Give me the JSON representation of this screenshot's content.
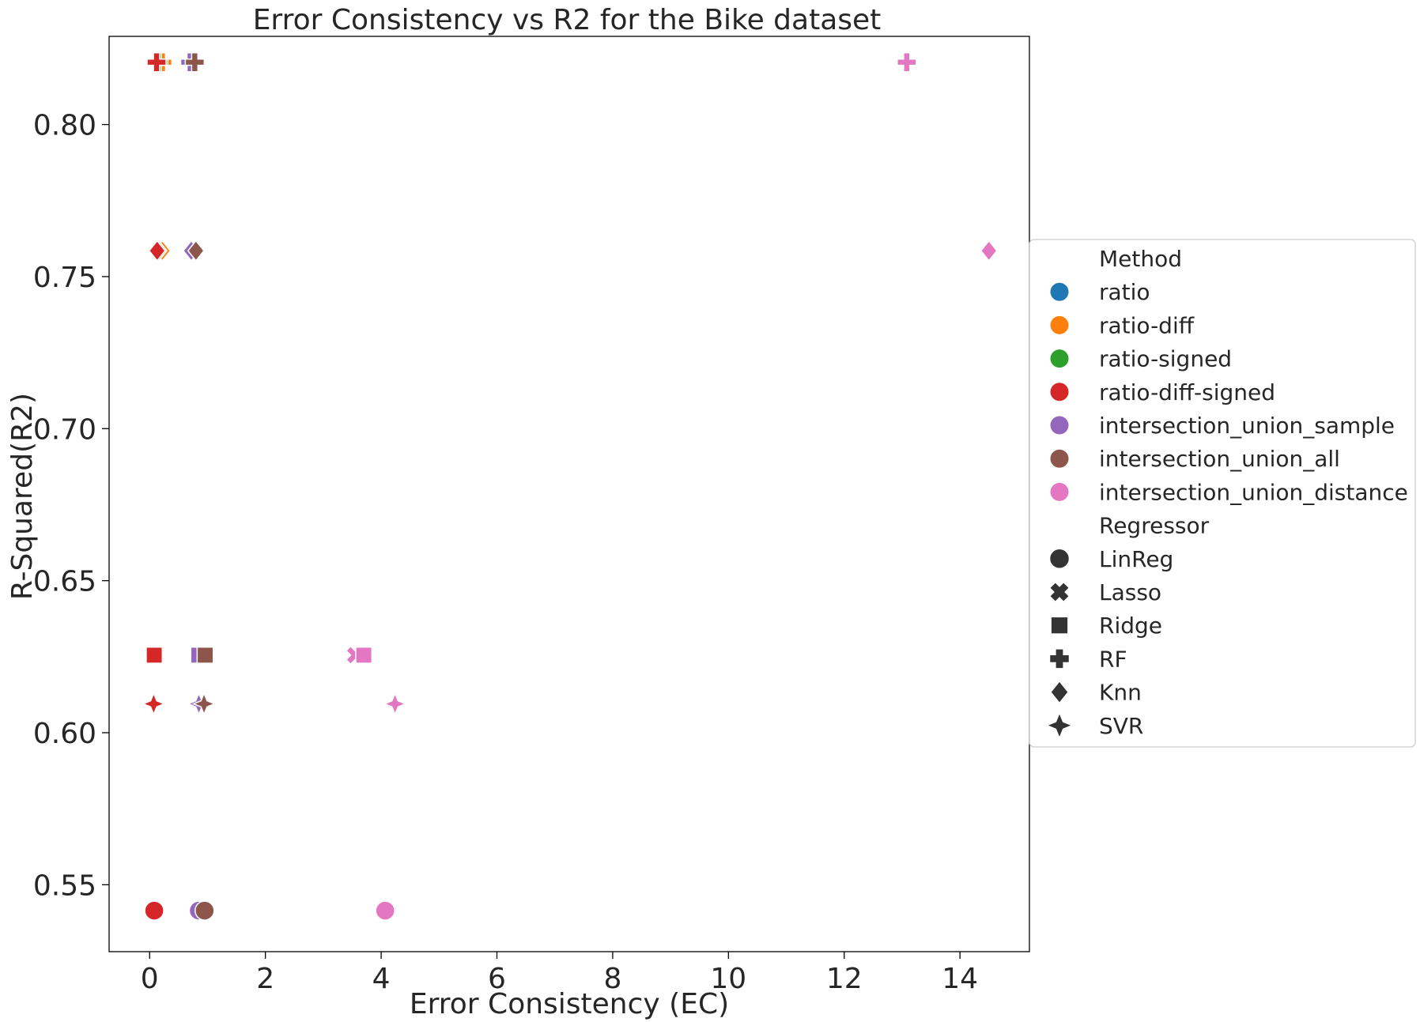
{
  "chart_data": {
    "type": "scatter",
    "title": "Error Consistency vs R2 for the Bike dataset",
    "xlabel": "Error Consistency (EC)",
    "ylabel": "R-Squared(R2)",
    "xlim": [
      -0.7,
      15.2
    ],
    "ylim": [
      0.528,
      0.829
    ],
    "xticks": [
      0,
      2,
      4,
      6,
      8,
      10,
      12,
      14
    ],
    "yticks": [
      0.55,
      0.6,
      0.65,
      0.7,
      0.75,
      0.8
    ],
    "xtick_labels": [
      "0",
      "2",
      "4",
      "6",
      "8",
      "10",
      "12",
      "14"
    ],
    "ytick_labels": [
      "0.55",
      "0.60",
      "0.65",
      "0.70",
      "0.75",
      "0.80"
    ],
    "grid": false,
    "legend_placement": "right",
    "legend": {
      "method_title": "Method",
      "methods": [
        {
          "name": "ratio",
          "color": "#1f77b4"
        },
        {
          "name": "ratio-diff",
          "color": "#ff7f0e"
        },
        {
          "name": "ratio-signed",
          "color": "#2ca02c"
        },
        {
          "name": "ratio-diff-signed",
          "color": "#d62728"
        },
        {
          "name": "intersection_union_sample",
          "color": "#9467bd"
        },
        {
          "name": "intersection_union_all",
          "color": "#8c564b"
        },
        {
          "name": "intersection_union_distance",
          "color": "#e377c2"
        }
      ],
      "regressor_title": "Regressor",
      "regressors": [
        {
          "name": "LinReg",
          "marker": "circle"
        },
        {
          "name": "Lasso",
          "marker": "x"
        },
        {
          "name": "Ridge",
          "marker": "square"
        },
        {
          "name": "RF",
          "marker": "plus"
        },
        {
          "name": "Knn",
          "marker": "diamond"
        },
        {
          "name": "SVR",
          "marker": "star4"
        }
      ]
    },
    "points": [
      {
        "method": "ratio",
        "regressor": "LinReg",
        "x": 0.07,
        "y": 0.5415
      },
      {
        "method": "ratio-diff",
        "regressor": "LinReg",
        "x": 0.08,
        "y": 0.5415
      },
      {
        "method": "ratio-signed",
        "regressor": "LinReg",
        "x": 0.07,
        "y": 0.5415
      },
      {
        "method": "ratio-diff-signed",
        "regressor": "LinReg",
        "x": 0.08,
        "y": 0.5415
      },
      {
        "method": "intersection_union_sample",
        "regressor": "LinReg",
        "x": 0.85,
        "y": 0.5415
      },
      {
        "method": "intersection_union_all",
        "regressor": "LinReg",
        "x": 0.95,
        "y": 0.5415
      },
      {
        "method": "intersection_union_distance",
        "regressor": "LinReg",
        "x": 4.07,
        "y": 0.5415
      },
      {
        "method": "ratio",
        "regressor": "Lasso",
        "x": 0.07,
        "y": 0.6255
      },
      {
        "method": "ratio-diff",
        "regressor": "Lasso",
        "x": 0.08,
        "y": 0.6255
      },
      {
        "method": "ratio-signed",
        "regressor": "Lasso",
        "x": 0.07,
        "y": 0.6255
      },
      {
        "method": "ratio-diff-signed",
        "regressor": "Lasso",
        "x": 0.08,
        "y": 0.6255
      },
      {
        "method": "intersection_union_sample",
        "regressor": "Lasso",
        "x": 0.85,
        "y": 0.6255
      },
      {
        "method": "intersection_union_all",
        "regressor": "Lasso",
        "x": 0.92,
        "y": 0.6255
      },
      {
        "method": "intersection_union_distance",
        "regressor": "Lasso",
        "x": 3.55,
        "y": 0.6255
      },
      {
        "method": "ratio",
        "regressor": "Ridge",
        "x": 0.07,
        "y": 0.6255
      },
      {
        "method": "ratio-diff",
        "regressor": "Ridge",
        "x": 0.08,
        "y": 0.6255
      },
      {
        "method": "ratio-signed",
        "regressor": "Ridge",
        "x": 0.07,
        "y": 0.6255
      },
      {
        "method": "ratio-diff-signed",
        "regressor": "Ridge",
        "x": 0.08,
        "y": 0.6255
      },
      {
        "method": "intersection_union_sample",
        "regressor": "Ridge",
        "x": 0.85,
        "y": 0.6255
      },
      {
        "method": "intersection_union_all",
        "regressor": "Ridge",
        "x": 0.96,
        "y": 0.6255
      },
      {
        "method": "intersection_union_distance",
        "regressor": "Ridge",
        "x": 3.7,
        "y": 0.6255
      },
      {
        "method": "ratio",
        "regressor": "RF",
        "x": 0.17,
        "y": 0.8205
      },
      {
        "method": "ratio-diff",
        "regressor": "RF",
        "x": 0.22,
        "y": 0.8205
      },
      {
        "method": "ratio-signed",
        "regressor": "RF",
        "x": 0.15,
        "y": 0.8205
      },
      {
        "method": "ratio-diff-signed",
        "regressor": "RF",
        "x": 0.12,
        "y": 0.8205
      },
      {
        "method": "intersection_union_sample",
        "regressor": "RF",
        "x": 0.7,
        "y": 0.8205
      },
      {
        "method": "intersection_union_all",
        "regressor": "RF",
        "x": 0.78,
        "y": 0.8205
      },
      {
        "method": "intersection_union_distance",
        "regressor": "RF",
        "x": 13.08,
        "y": 0.8205
      },
      {
        "method": "ratio",
        "regressor": "Knn",
        "x": 0.18,
        "y": 0.7585
      },
      {
        "method": "ratio-diff",
        "regressor": "Knn",
        "x": 0.22,
        "y": 0.7585
      },
      {
        "method": "ratio-signed",
        "regressor": "Knn",
        "x": 0.16,
        "y": 0.7585
      },
      {
        "method": "ratio-diff-signed",
        "regressor": "Knn",
        "x": 0.13,
        "y": 0.7585
      },
      {
        "method": "intersection_union_sample",
        "regressor": "Knn",
        "x": 0.72,
        "y": 0.7585
      },
      {
        "method": "intersection_union_all",
        "regressor": "Knn",
        "x": 0.8,
        "y": 0.7585
      },
      {
        "method": "intersection_union_distance",
        "regressor": "Knn",
        "x": 14.5,
        "y": 0.7585
      },
      {
        "method": "ratio",
        "regressor": "SVR",
        "x": 0.07,
        "y": 0.6095
      },
      {
        "method": "ratio-diff",
        "regressor": "SVR",
        "x": 0.08,
        "y": 0.6095
      },
      {
        "method": "ratio-signed",
        "regressor": "SVR",
        "x": 0.07,
        "y": 0.6095
      },
      {
        "method": "ratio-diff-signed",
        "regressor": "SVR",
        "x": 0.07,
        "y": 0.6095
      },
      {
        "method": "intersection_union_sample",
        "regressor": "SVR",
        "x": 0.85,
        "y": 0.6095
      },
      {
        "method": "intersection_union_all",
        "regressor": "SVR",
        "x": 0.94,
        "y": 0.6095
      },
      {
        "method": "intersection_union_distance",
        "regressor": "SVR",
        "x": 4.24,
        "y": 0.6095
      }
    ]
  }
}
